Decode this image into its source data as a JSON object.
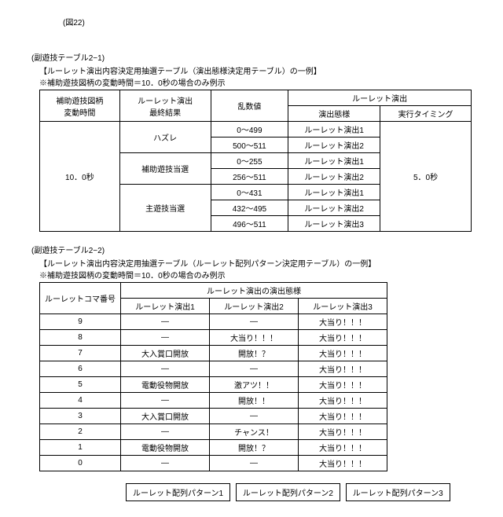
{
  "figure_label": "(図22)",
  "section1": {
    "title": "(副遊技テーブル2−1)",
    "subtitle": "【ルーレット演出内容決定用抽選テーブル（演出態様決定用テーブル）の一例】",
    "note": "※補助遊技図柄の変動時間＝10．0秒の場合のみ例示",
    "headers": {
      "col1a": "補助遊技図柄",
      "col1b": "変動時間",
      "col2a": "ルーレット演出",
      "col2b": "最終結果",
      "col3": "乱数値",
      "col45": "ルーレット演出",
      "col4": "演出態様",
      "col5": "実行タイミング"
    },
    "time_val": "10．0秒",
    "results": {
      "r1": "ハズレ",
      "r2": "補助遊技当選",
      "r3": "主遊技当選"
    },
    "rand": {
      "v1": "0～499",
      "v2": "500～511",
      "v3": "0～255",
      "v4": "256～511",
      "v5": "0～431",
      "v6": "432～495",
      "v7": "496～511"
    },
    "modes": {
      "m1": "ルーレット演出1",
      "m2": "ルーレット演出2",
      "m3": "ルーレット演出1",
      "m4": "ルーレット演出2",
      "m5": "ルーレット演出1",
      "m6": "ルーレット演出2",
      "m7": "ルーレット演出3"
    },
    "timing": "5．0秒"
  },
  "section2": {
    "title": "(副遊技テーブル2−2)",
    "subtitle": "【ルーレット演出内容決定用抽選テーブル（ルーレット配列パターン決定用テーブル）の一例】",
    "note": "※補助遊技図柄の変動時間＝10．0秒の場合のみ例示",
    "headers": {
      "col1": "ルーレットコマ番号",
      "colgroup": "ルーレット演出の演出態様",
      "c1": "ルーレット演出1",
      "c2": "ルーレット演出2",
      "c3": "ルーレット演出3"
    },
    "rows": [
      {
        "n": "9",
        "a": "—",
        "b": "—",
        "c": "大当り！！！"
      },
      {
        "n": "8",
        "a": "—",
        "b": "大当り！！！",
        "c": "大当り！！！"
      },
      {
        "n": "7",
        "a": "大入賞口開放",
        "b": "開放！？",
        "c": "大当り！！！"
      },
      {
        "n": "6",
        "a": "—",
        "b": "—",
        "c": "大当り！！！"
      },
      {
        "n": "5",
        "a": "電動役物開放",
        "b": "激アツ！！",
        "c": "大当り！！！"
      },
      {
        "n": "4",
        "a": "—",
        "b": "開放！！",
        "c": "大当り！！！"
      },
      {
        "n": "3",
        "a": "大入賞口開放",
        "b": "—",
        "c": "大当り！！！"
      },
      {
        "n": "2",
        "a": "—",
        "b": "チャンス！",
        "c": "大当り！！！"
      },
      {
        "n": "1",
        "a": "電動役物開放",
        "b": "開放！？",
        "c": "大当り！！！"
      },
      {
        "n": "0",
        "a": "—",
        "b": "—",
        "c": "大当り！！！"
      }
    ],
    "patterns": {
      "p1": "ルーレット配列パターン1",
      "p2": "ルーレット配列パターン2",
      "p3": "ルーレット配列パターン3"
    }
  }
}
